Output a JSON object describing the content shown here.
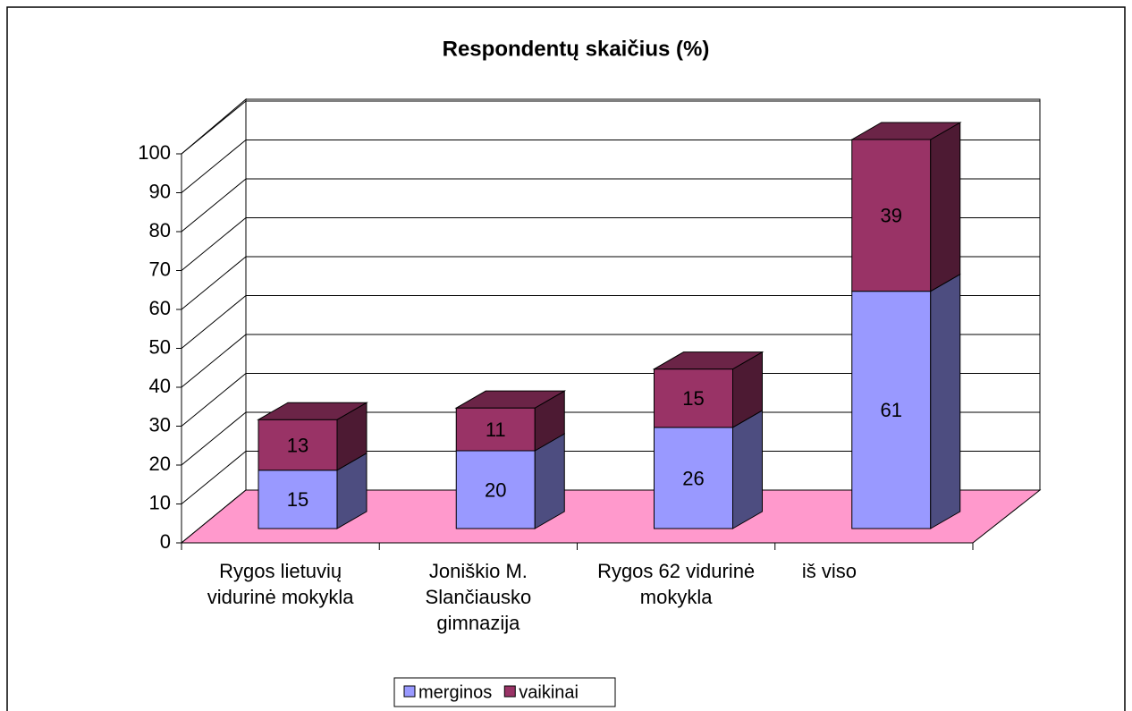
{
  "chart_data": {
    "type": "bar3d_stacked",
    "title": "Respondentų skaičius (%)",
    "categories": [
      "Rygos lietuvių vidurinė mokykla",
      "Joniškio M. Slančiausko gimnazija",
      "Rygos 62 vidurinė mokykla",
      "iš viso"
    ],
    "series": [
      {
        "name": "merginos",
        "color": "#9999ff",
        "values": [
          15,
          20,
          26,
          61
        ]
      },
      {
        "name": "vaikinai",
        "color": "#993366",
        "values": [
          13,
          11,
          15,
          39
        ]
      }
    ],
    "ylim": [
      0,
      100
    ],
    "yticks": [
      0,
      10,
      20,
      30,
      40,
      50,
      60,
      70,
      80,
      90,
      100
    ],
    "grid": true,
    "floor_color": "#ff99cc",
    "legend": "bottom"
  }
}
